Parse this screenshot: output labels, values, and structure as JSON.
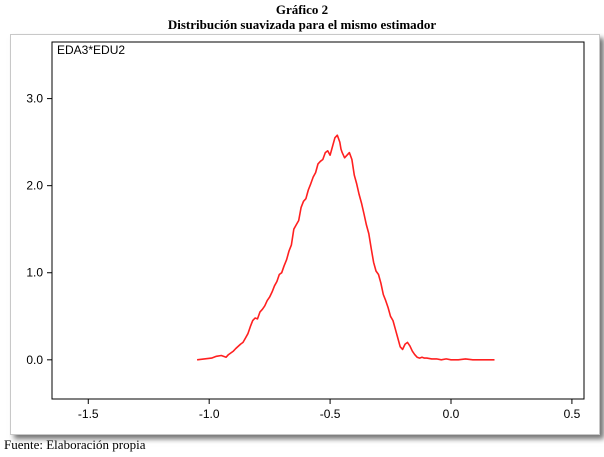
{
  "figure": {
    "title": "Gráfico 2",
    "subtitle": "Distribución suavizada para el mismo estimador",
    "source_note": "Fuente: Elaboración propia"
  },
  "chart_data": {
    "type": "line",
    "panel_label": "EDA3*EDU2",
    "xlim": [
      -1.65,
      0.55
    ],
    "ylim": [
      -0.45,
      3.65
    ],
    "x_ticks": [
      -1.5,
      -1.0,
      -0.5,
      0.0,
      0.5
    ],
    "x_tick_labels": [
      "-1.5",
      "-1.0",
      "-0.5",
      "0.0",
      "0.5"
    ],
    "y_ticks": [
      0.0,
      1.0,
      2.0,
      3.0
    ],
    "y_tick_labels": [
      "0.0",
      "1.0",
      "2.0",
      "3.0"
    ],
    "grid": false,
    "line_color": "#ff2020",
    "series": [
      {
        "x": [
          -1.05,
          -1.02,
          -0.99,
          -0.97,
          -0.95,
          -0.93,
          -0.92,
          -0.9,
          -0.89,
          -0.87,
          -0.86,
          -0.85,
          -0.84,
          -0.83,
          -0.82,
          -0.81,
          -0.8,
          -0.79,
          -0.78,
          -0.77,
          -0.76,
          -0.75,
          -0.74,
          -0.73,
          -0.72,
          -0.71,
          -0.7,
          -0.69,
          -0.68,
          -0.67,
          -0.66,
          -0.65,
          -0.64,
          -0.63,
          -0.62,
          -0.61,
          -0.6,
          -0.59,
          -0.58,
          -0.57,
          -0.56,
          -0.55,
          -0.54,
          -0.53,
          -0.52,
          -0.51,
          -0.5,
          -0.49,
          -0.48,
          -0.47,
          -0.46,
          -0.455,
          -0.45,
          -0.44,
          -0.43,
          -0.42,
          -0.41,
          -0.4,
          -0.39,
          -0.38,
          -0.37,
          -0.36,
          -0.35,
          -0.34,
          -0.33,
          -0.32,
          -0.31,
          -0.3,
          -0.29,
          -0.28,
          -0.27,
          -0.26,
          -0.25,
          -0.24,
          -0.23,
          -0.22,
          -0.21,
          -0.2,
          -0.19,
          -0.18,
          -0.17,
          -0.16,
          -0.15,
          -0.14,
          -0.13,
          -0.12,
          -0.11,
          -0.1,
          -0.08,
          -0.06,
          -0.04,
          -0.02,
          0.0,
          0.03,
          0.06,
          0.09,
          0.12,
          0.15,
          0.18
        ],
        "y": [
          0.0,
          0.01,
          0.02,
          0.04,
          0.05,
          0.03,
          0.06,
          0.1,
          0.13,
          0.18,
          0.2,
          0.25,
          0.3,
          0.38,
          0.45,
          0.48,
          0.47,
          0.55,
          0.58,
          0.62,
          0.68,
          0.72,
          0.78,
          0.85,
          0.9,
          0.98,
          1.0,
          1.08,
          1.15,
          1.25,
          1.32,
          1.5,
          1.55,
          1.6,
          1.75,
          1.82,
          1.85,
          1.95,
          2.02,
          2.1,
          2.15,
          2.25,
          2.28,
          2.3,
          2.38,
          2.4,
          2.35,
          2.45,
          2.55,
          2.58,
          2.5,
          2.42,
          2.38,
          2.32,
          2.35,
          2.38,
          2.3,
          2.12,
          2.02,
          1.9,
          1.8,
          1.68,
          1.55,
          1.45,
          1.28,
          1.12,
          1.02,
          0.98,
          0.88,
          0.75,
          0.68,
          0.6,
          0.5,
          0.45,
          0.35,
          0.25,
          0.15,
          0.12,
          0.18,
          0.2,
          0.16,
          0.1,
          0.06,
          0.03,
          0.02,
          0.03,
          0.02,
          0.02,
          0.01,
          0.01,
          0.0,
          0.01,
          0.0,
          0.0,
          0.01,
          0.0,
          0.0,
          0.0,
          0.0
        ]
      }
    ]
  }
}
